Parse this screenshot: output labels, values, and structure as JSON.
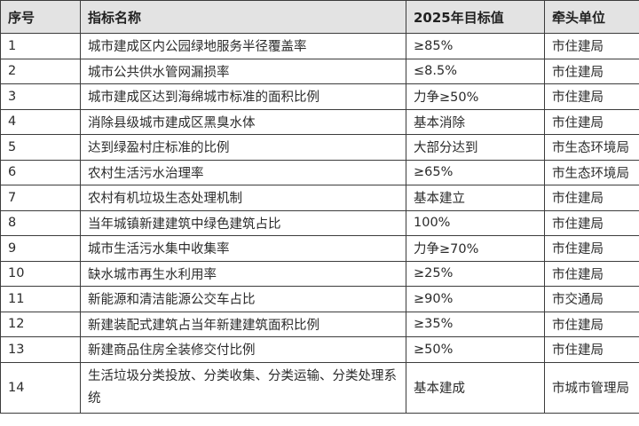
{
  "table": {
    "headers": [
      "序号",
      "指标名称",
      "2025年目标值",
      "牵头单位"
    ],
    "rows": [
      {
        "no": "1",
        "name": "城市建成区内公园绿地服务半径覆盖率",
        "target": "≥85%",
        "unit": "市住建局"
      },
      {
        "no": "2",
        "name": "城市公共供水管网漏损率",
        "target": "≤8.5%",
        "unit": "市住建局"
      },
      {
        "no": "3",
        "name": "城市建成区达到海绵城市标准的面积比例",
        "target": "力争≥50%",
        "unit": "市住建局"
      },
      {
        "no": "4",
        "name": "消除县级城市建成区黑臭水体",
        "target": "基本消除",
        "unit": "市住建局"
      },
      {
        "no": "5",
        "name": "达到绿盈村庄标准的比例",
        "target": "大部分达到",
        "unit": "市生态环境局"
      },
      {
        "no": "6",
        "name": "农村生活污水治理率",
        "target": "≥65%",
        "unit": "市生态环境局"
      },
      {
        "no": "7",
        "name": "农村有机垃圾生态处理机制",
        "target": "基本建立",
        "unit": "市住建局"
      },
      {
        "no": "8",
        "name": "当年城镇新建建筑中绿色建筑占比",
        "target": "100%",
        "unit": "市住建局"
      },
      {
        "no": "9",
        "name": "城市生活污水集中收集率",
        "target": "力争≥70%",
        "unit": "市住建局"
      },
      {
        "no": "10",
        "name": "缺水城市再生水利用率",
        "target": "≥25%",
        "unit": "市住建局"
      },
      {
        "no": "11",
        "name": "新能源和清洁能源公交车占比",
        "target": "≥90%",
        "unit": "市交通局"
      },
      {
        "no": "12",
        "name": "新建装配式建筑占当年新建建筑面积比例",
        "target": "≥35%",
        "unit": "市住建局"
      },
      {
        "no": "13",
        "name": "新建商品住房全装修交付比例",
        "target": "≥50%",
        "unit": "市住建局"
      },
      {
        "no": "14",
        "name": "生活垃圾分类投放、分类收集、分类运输、分类处理系统",
        "target": "基本建成",
        "unit": "市城市管理局"
      }
    ]
  }
}
